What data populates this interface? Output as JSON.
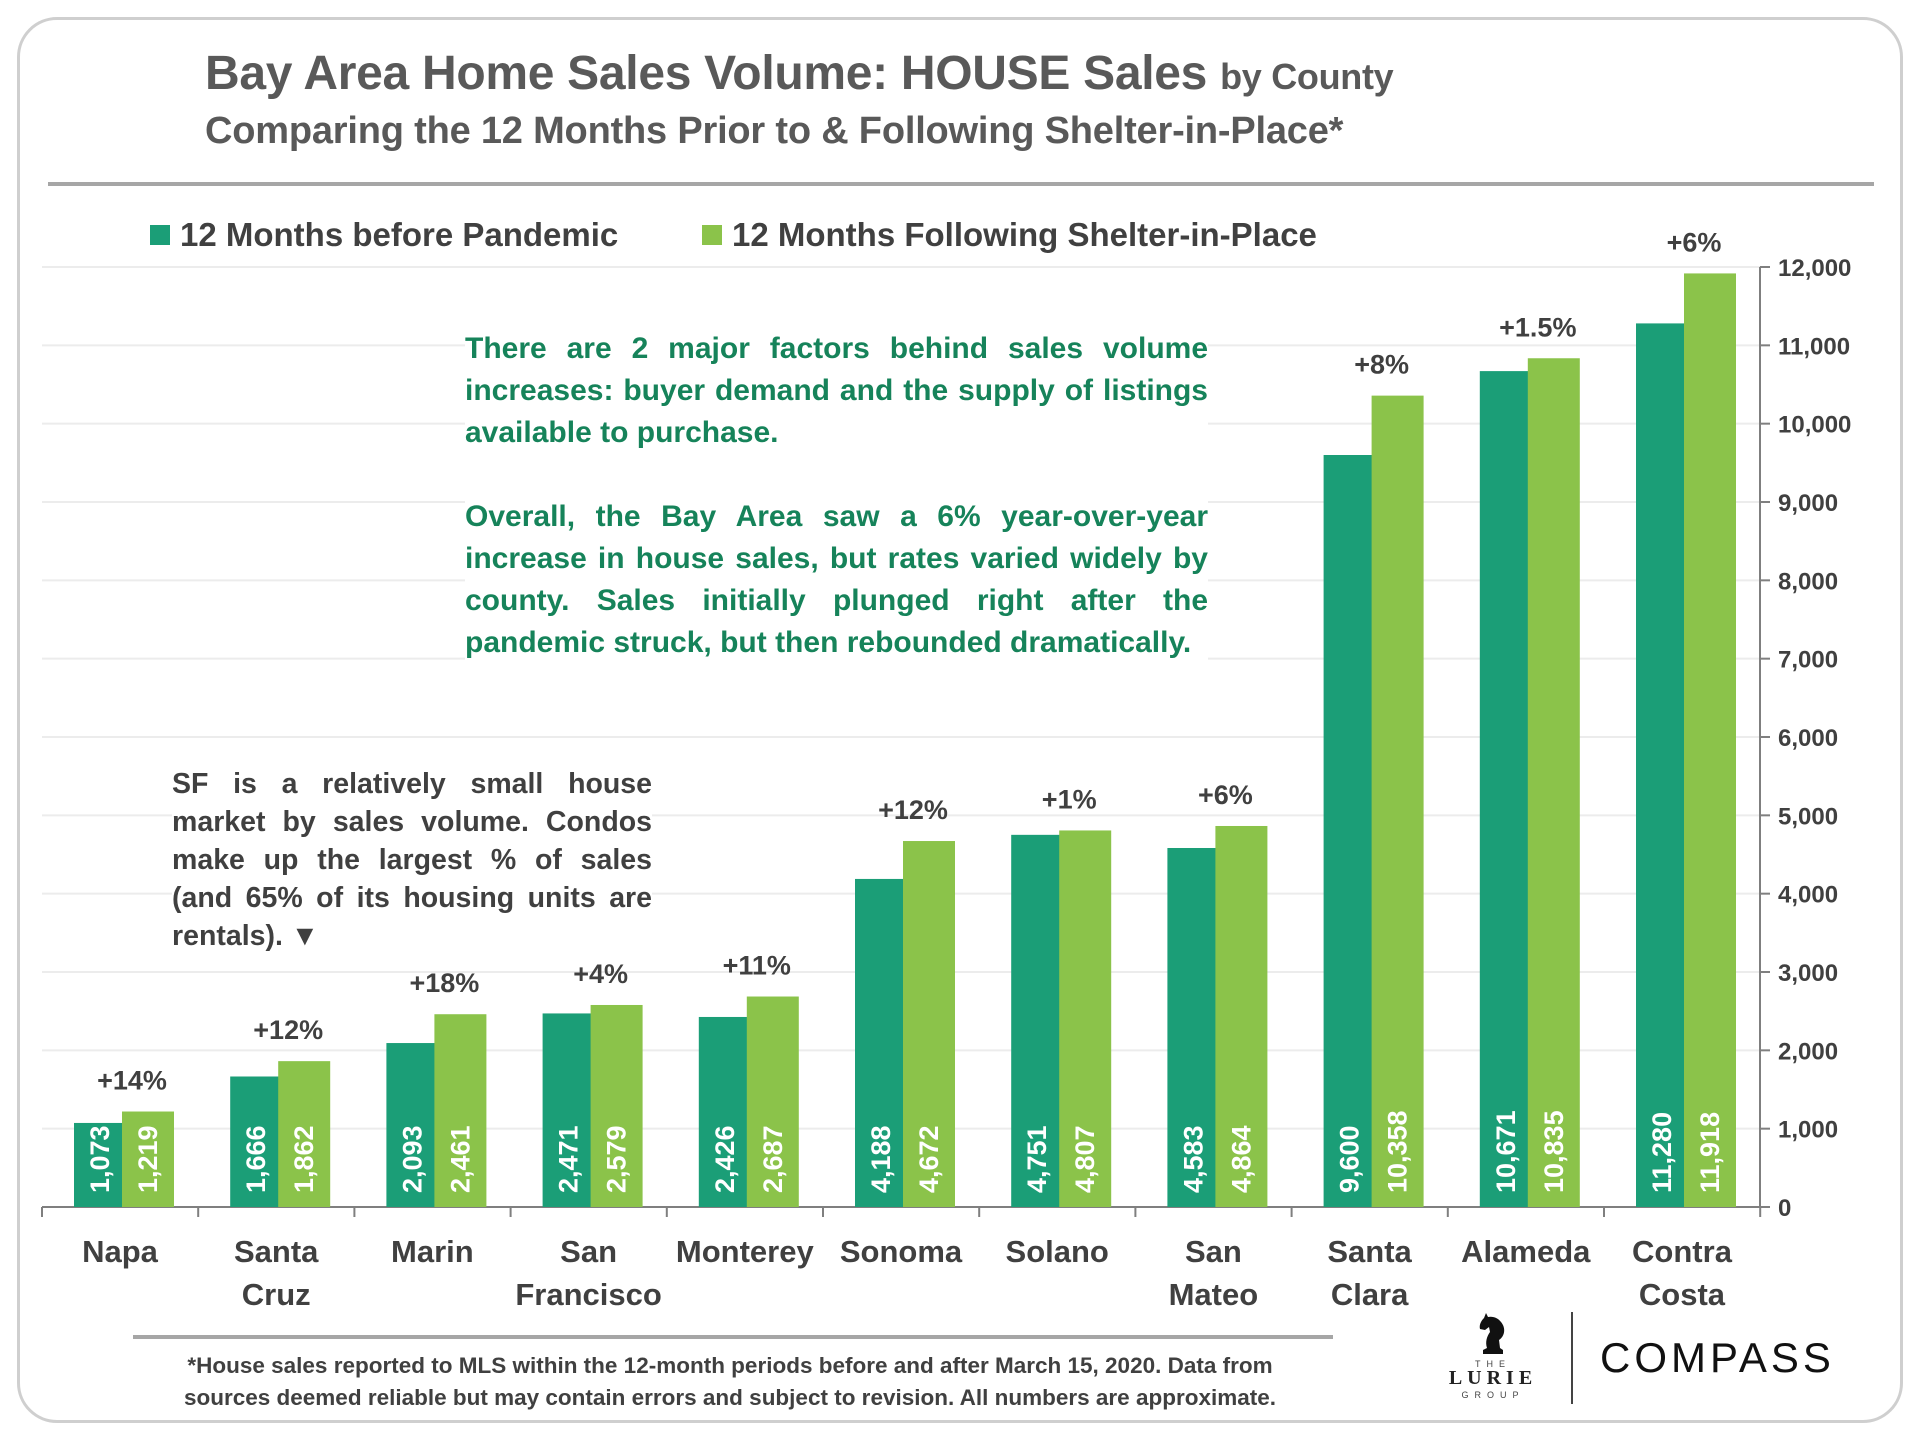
{
  "header": {
    "title_main": "Bay Area Home Sales Volume: HOUSE Sales",
    "title_small": "by County",
    "subtitle": "Comparing the 12 Months Prior to & Following Shelter-in-Place*"
  },
  "chart_data": {
    "type": "bar",
    "title": "Bay Area Home Sales Volume: HOUSE Sales by County",
    "subtitle": "Comparing the 12 Months Prior to & Following Shelter-in-Place*",
    "categories": [
      [
        "Napa"
      ],
      [
        "Santa",
        "Cruz"
      ],
      [
        "Marin"
      ],
      [
        "San",
        "Francisco"
      ],
      [
        "Monterey"
      ],
      [
        "Sonoma"
      ],
      [
        "Solano"
      ],
      [
        "San",
        "Mateo"
      ],
      [
        "Santa",
        "Clara"
      ],
      [
        "Alameda"
      ],
      [
        "Contra",
        "Costa"
      ]
    ],
    "series": [
      {
        "name": "12 Months before Pandemic",
        "color": "#1b9e77",
        "values": [
          1073,
          1666,
          2093,
          2471,
          2426,
          4188,
          4751,
          4583,
          9600,
          10671,
          11280
        ],
        "labels": [
          "1,073",
          "1,666",
          "2,093",
          "2,471",
          "2,426",
          "4,188",
          "4,751",
          "4,583",
          "9,600",
          "10,671",
          "11,280"
        ]
      },
      {
        "name": "12 Months Following Shelter-in-Place",
        "color": "#8bc34a",
        "values": [
          1219,
          1862,
          2461,
          2579,
          2687,
          4672,
          4807,
          4864,
          10358,
          10835,
          11918
        ],
        "labels": [
          "1,219",
          "1,862",
          "2,461",
          "2,579",
          "2,687",
          "4,672",
          "4,807",
          "4,864",
          "10,358",
          "10,835",
          "11,918"
        ]
      }
    ],
    "pct_change": [
      "+14%",
      "+12%",
      "+18%",
      "+4%",
      "+11%",
      "+12%",
      "+1%",
      "+6%",
      "+8%",
      "+1.5%",
      "+6%"
    ],
    "ylim": [
      0,
      12000
    ],
    "yticks": [
      0,
      1000,
      2000,
      3000,
      4000,
      5000,
      6000,
      7000,
      8000,
      9000,
      10000,
      11000,
      12000
    ],
    "ytick_labels": [
      "0",
      "1,000",
      "2,000",
      "3,000",
      "4,000",
      "5,000",
      "6,000",
      "7,000",
      "8,000",
      "9,000",
      "10,000",
      "11,000",
      "12,000"
    ],
    "y_axis_side": "right",
    "grid": true,
    "legend_position": "top-left"
  },
  "annotations": {
    "green_p1": "There are 2 major factors behind sales volume increases: buyer demand and the supply of listings available to purchase.",
    "green_p2": "Overall, the Bay Area saw a 6% year-over-year increase in house sales, but rates varied widely by county. Sales initially plunged right after the pandemic struck, but then rebounded dramatically.",
    "gray_note": "SF is a relatively small house market by sales volume. Condos make up the largest % of sales (and 65% of its housing units are rentals).  ▼"
  },
  "footnote": {
    "line1": "*House sales reported to MLS within the 12-month periods before and after March 15, 2020. Data from",
    "line2": "sources deemed reliable but may contain errors and subject to revision.  All numbers are approximate."
  },
  "logos": {
    "lurie_the": "THE",
    "lurie_name": "LURIE",
    "lurie_group": "GROUP",
    "compass": "COMPASS"
  }
}
